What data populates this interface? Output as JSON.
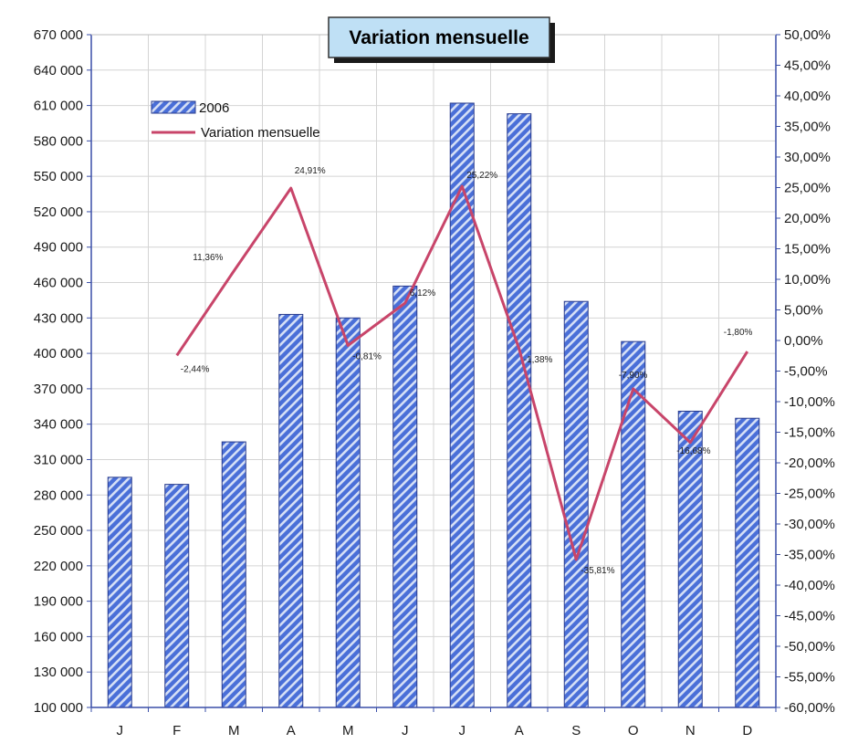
{
  "chart_data": {
    "type": "bar",
    "title": "Variation mensuelle",
    "categories": [
      "J",
      "F",
      "M",
      "A",
      "M",
      "J",
      "J",
      "A",
      "S",
      "O",
      "N",
      "D"
    ],
    "series": [
      {
        "name": "2006",
        "type": "bar",
        "axis": "left",
        "values": [
          295000,
          289000,
          325000,
          433000,
          430000,
          457000,
          612000,
          603000,
          444000,
          410000,
          351000,
          345000
        ]
      },
      {
        "name": "Variation mensuelle",
        "type": "line",
        "axis": "right",
        "values": [
          null,
          -2.44,
          11.36,
          24.91,
          -0.81,
          6.12,
          25.22,
          -1.38,
          -35.81,
          -7.9,
          -16.68,
          -1.8
        ],
        "labels": [
          "",
          "-2,44%",
          "11,36%",
          "24,91%",
          "-0,81%",
          "6,12%",
          "25,22%",
          "-1,38%",
          "-35,81%",
          "-7,90%",
          "-16,68%",
          "-1,80%"
        ]
      }
    ],
    "y_left": {
      "ylim": [
        100000,
        670000
      ],
      "ticks": [
        100000,
        130000,
        160000,
        190000,
        220000,
        250000,
        280000,
        310000,
        340000,
        370000,
        400000,
        430000,
        460000,
        490000,
        520000,
        550000,
        580000,
        610000,
        640000,
        670000
      ],
      "tick_labels": [
        "100 000",
        "130 000",
        "160 000",
        "190 000",
        "220 000",
        "250 000",
        "280 000",
        "310 000",
        "340 000",
        "370 000",
        "400 000",
        "430 000",
        "460 000",
        "490 000",
        "520 000",
        "550 000",
        "580 000",
        "610 000",
        "640 000",
        "670 000"
      ]
    },
    "y_right": {
      "ylim": [
        -60,
        50
      ],
      "ticks": [
        -60,
        -55,
        -50,
        -45,
        -40,
        -35,
        -30,
        -25,
        -20,
        -15,
        -10,
        -5,
        0,
        5,
        10,
        15,
        20,
        25,
        30,
        35,
        40,
        45,
        50
      ],
      "tick_labels": [
        "-60,00%",
        "-55,00%",
        "-50,00%",
        "-45,00%",
        "-40,00%",
        "-35,00%",
        "-30,00%",
        "-25,00%",
        "-20,00%",
        "-15,00%",
        "-10,00%",
        "-5,00%",
        "0,00%",
        "5,00%",
        "10,00%",
        "15,00%",
        "20,00%",
        "25,00%",
        "30,00%",
        "35,00%",
        "40,00%",
        "45,00%",
        "50,00%"
      ]
    },
    "grid": true,
    "legend_placement": "top-left",
    "colors": {
      "bar_fill": "#4a6fd8",
      "bar_stripe": "#d6e0f6",
      "line": "#c8456a",
      "grid": "#d4d4d4",
      "axis": "#3a4fa8",
      "title_box": "#bfe0f5"
    }
  }
}
